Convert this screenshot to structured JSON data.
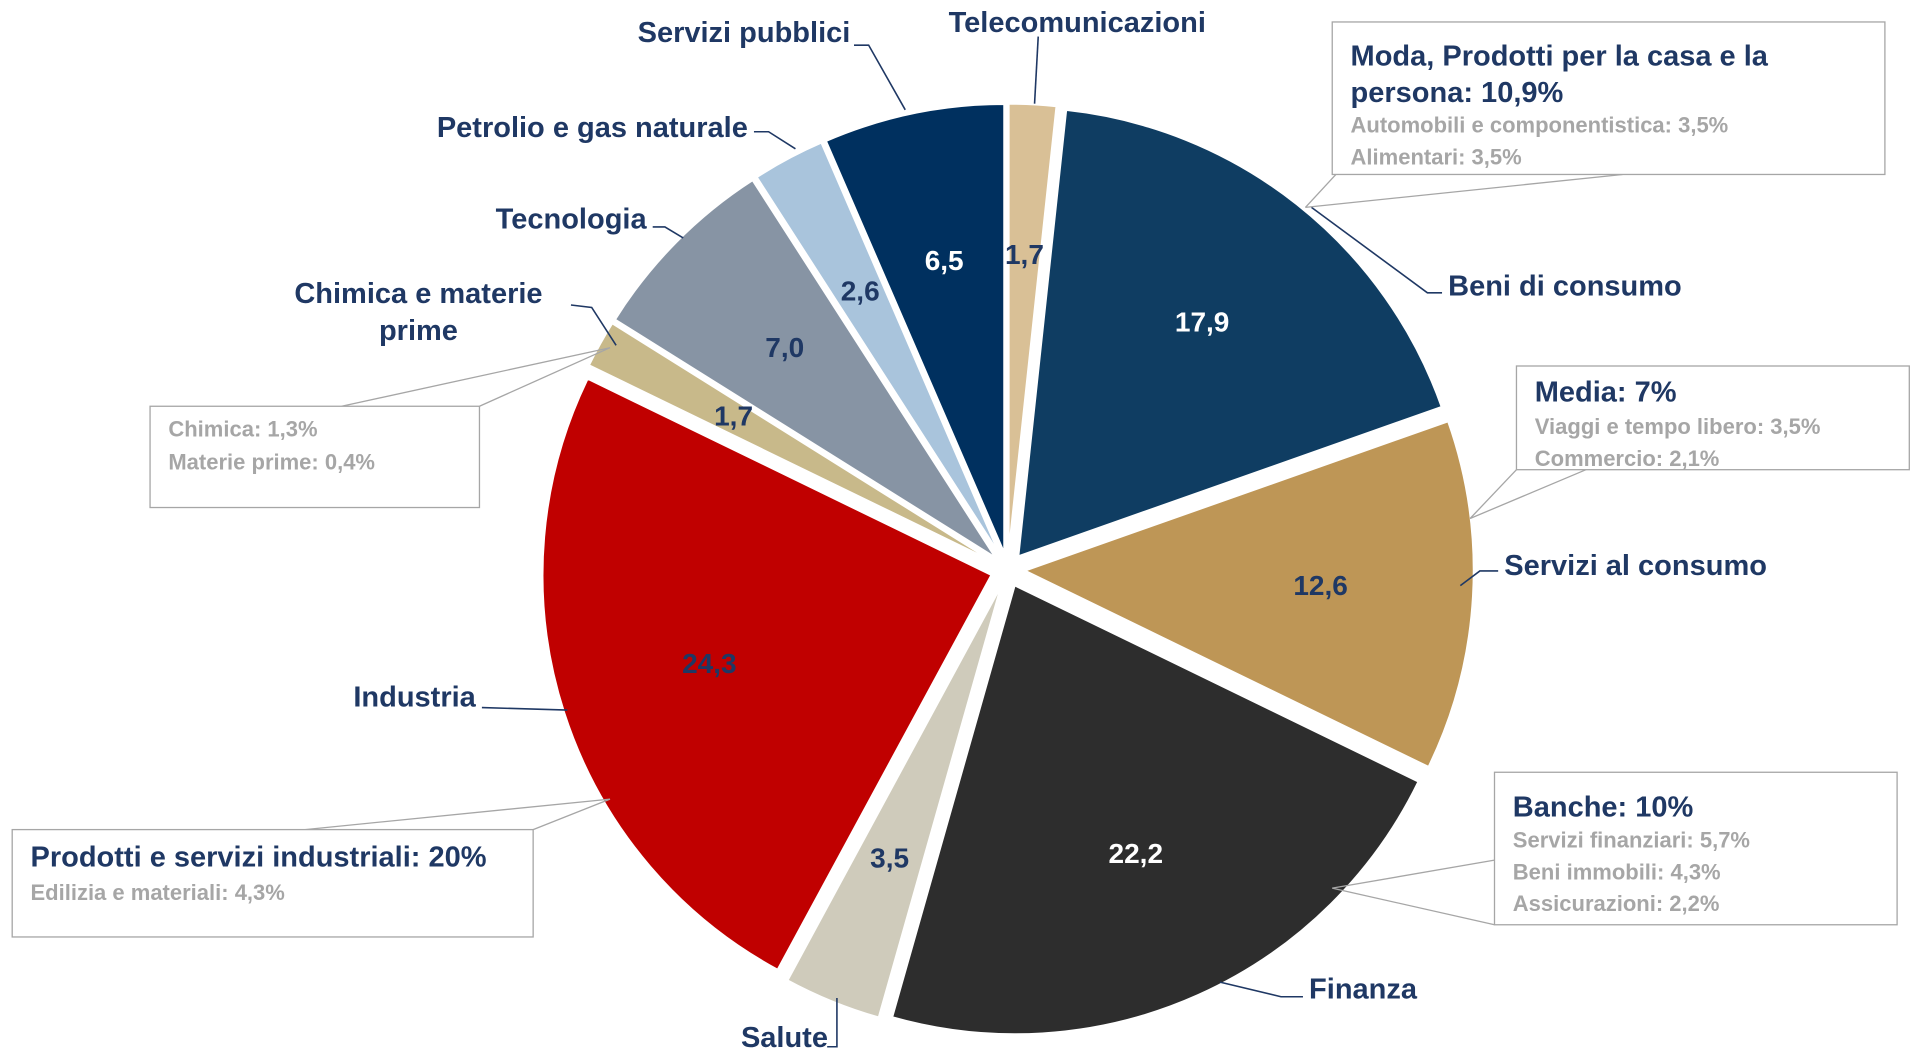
{
  "chart_data": {
    "type": "pie",
    "categories": [
      "Telecomunicazioni",
      "Beni di consumo",
      "Servizi al consumo",
      "Finanza",
      "Salute",
      "Industria",
      "Chimica e materie prime",
      "Tecnologia",
      "Petrolio e gas naturale",
      "Servizi pubblici"
    ],
    "values": [
      1.7,
      17.9,
      12.6,
      22.2,
      3.5,
      24.3,
      1.7,
      7.0,
      2.6,
      6.5
    ],
    "value_labels": [
      "1,7",
      "17,9",
      "12,6",
      "22,2",
      "3,5",
      "24,3",
      "1,7",
      "7,0",
      "2,6",
      "6,5"
    ],
    "colors": [
      "#d9c096",
      "#0f3d62",
      "#be9656",
      "#2d2d2d",
      "#cfcbbb",
      "#c00000",
      "#c8b98a",
      "#8794a4",
      "#a9c4dc",
      "#00305f"
    ],
    "value_label_colors": [
      "#1f3864",
      "#ffffff",
      "#1f3864",
      "#ffffff",
      "#1f3864",
      "#1f3864",
      "#1f3864",
      "#1f3864",
      "#1f3864",
      "#ffffff"
    ],
    "annotations": [
      {
        "title": "Moda, Prodotti per la casa e la persona: 10,9%",
        "items": [
          "Automobili e componentistica: 3,5%",
          "Alimentari: 3,5%"
        ]
      },
      {
        "title": "Media: 7%",
        "items": [
          "Viaggi e tempo libero: 3,5%",
          "Commercio: 2,1%"
        ]
      },
      {
        "title": "Banche: 10%",
        "items": [
          "Servizi finanziari: 5,7%",
          "Beni immobili: 4,3%",
          "Assicurazioni: 2,2%"
        ]
      },
      {
        "title": "Prodotti e servizi industriali: 20%",
        "items": [
          "Edilizia e materiali: 4,3%"
        ]
      },
      {
        "items": [
          "Chimica: 1,3%",
          "Materie prime: 0,4%"
        ]
      }
    ]
  }
}
